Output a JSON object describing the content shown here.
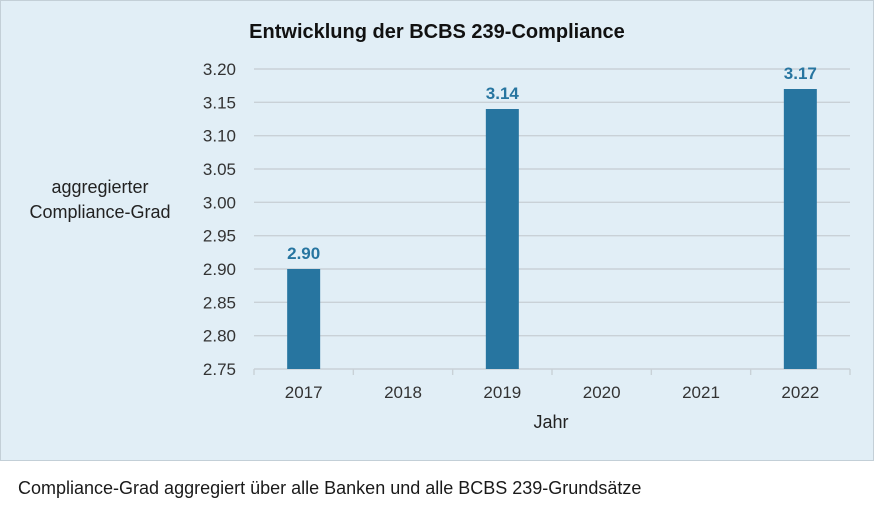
{
  "chart_data": {
    "type": "bar",
    "title": "Entwicklung der BCBS 239-Compliance",
    "xlabel": "Jahr",
    "ylabel": [
      "aggregierter",
      "Compliance-Grad"
    ],
    "categories": [
      "2017",
      "2018",
      "2019",
      "2020",
      "2021",
      "2022"
    ],
    "values": [
      2.9,
      null,
      3.14,
      null,
      null,
      3.17
    ],
    "value_labels": [
      "2.90",
      "",
      "3.14",
      "",
      "",
      "3.17"
    ],
    "ylim": [
      2.75,
      3.2
    ],
    "yticks": [
      "2.75",
      "2.80",
      "2.85",
      "2.90",
      "2.95",
      "3.00",
      "3.05",
      "3.10",
      "3.15",
      "3.20"
    ],
    "grid": true,
    "bar_color": "#2775a0",
    "label_color": "#2775a0",
    "background": "#e1eef6",
    "grid_color": "#c9d1d7"
  },
  "caption": "Compliance-Grad aggregiert über alle Banken und alle BCBS 239-Grundsätze"
}
